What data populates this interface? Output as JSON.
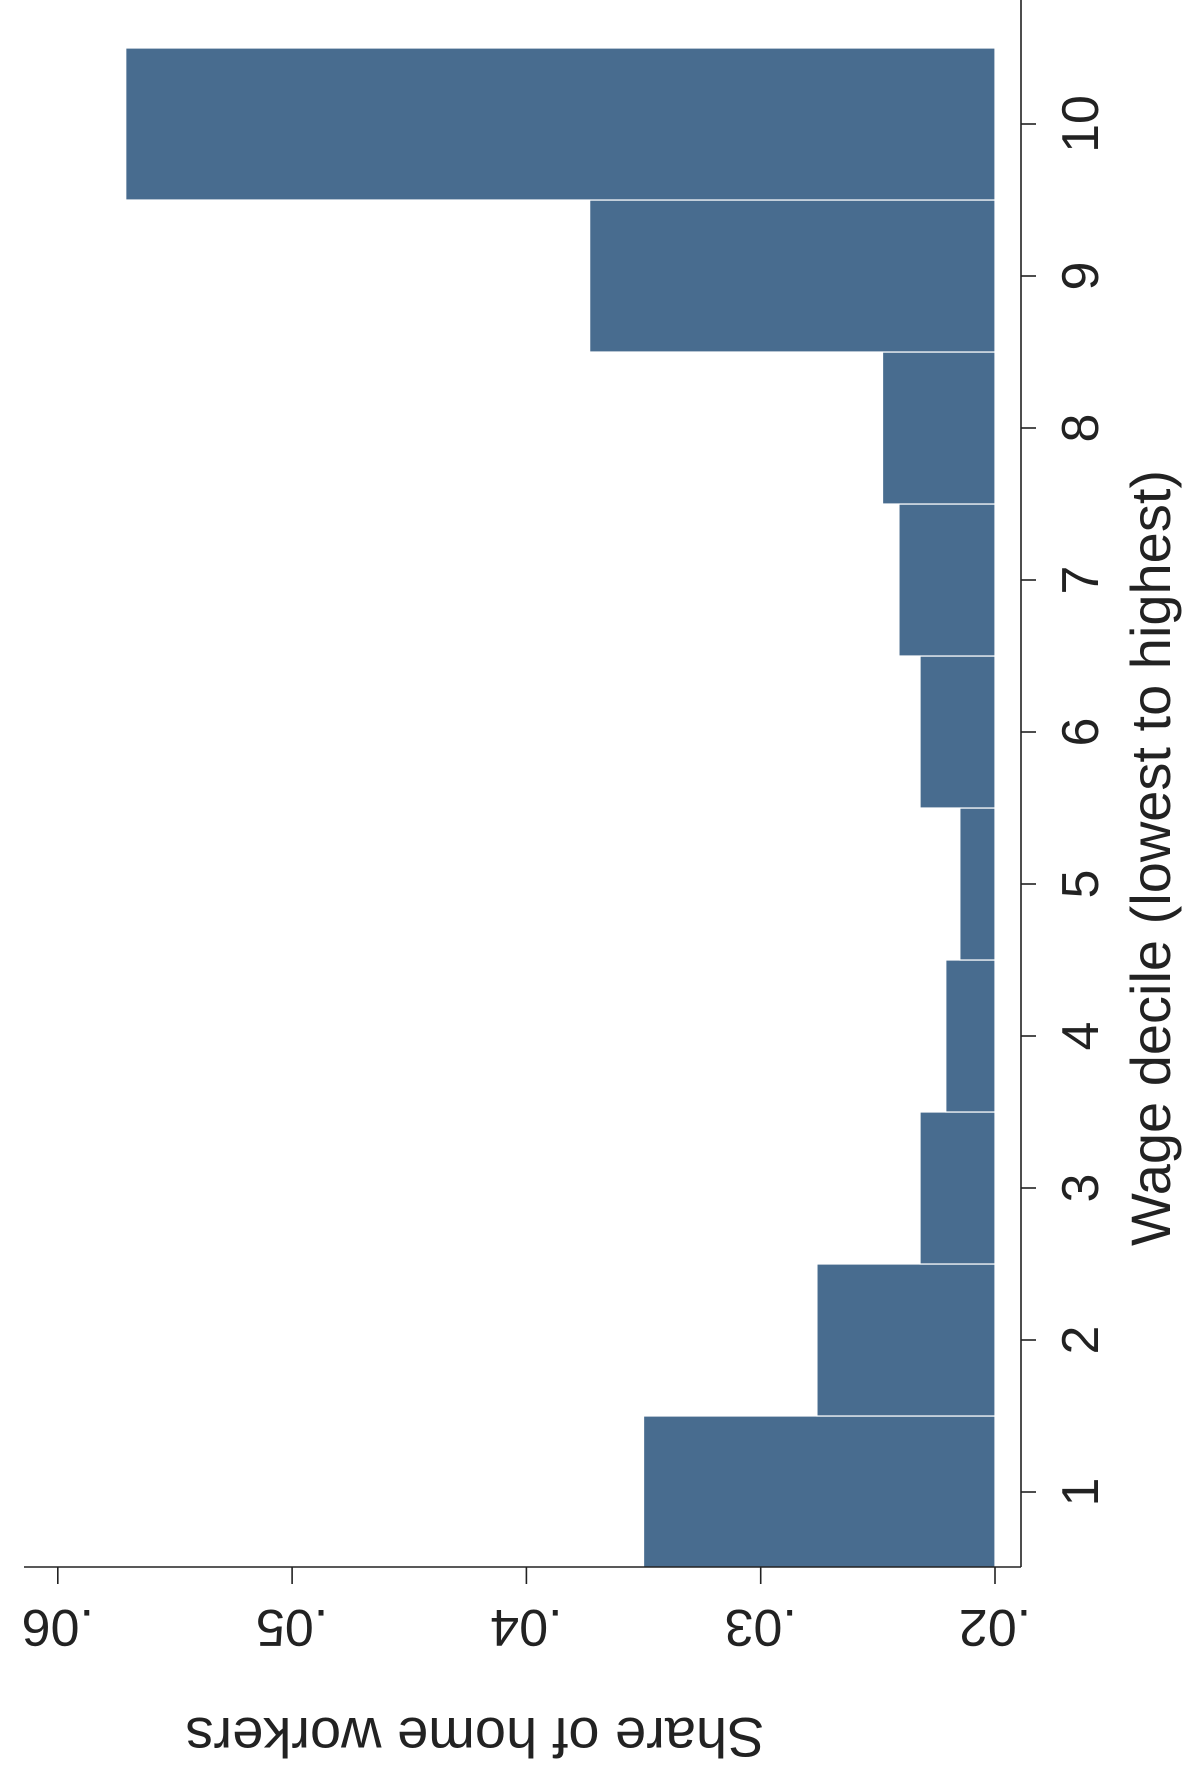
{
  "chart_data": {
    "type": "bar",
    "orientation": "horizontal-rotated",
    "title": "",
    "xlabel": "Wage decile (lowest to highest)",
    "ylabel": "Share of home workers",
    "categories": [
      "1",
      "2",
      "3",
      "4",
      "5",
      "6",
      "7",
      "8",
      "9",
      "10"
    ],
    "values": [
      0.035,
      0.0276,
      0.0232,
      0.0221,
      0.0215,
      0.0232,
      0.0241,
      0.0248,
      0.0373,
      0.0571
    ],
    "yticks": [
      ".02",
      ".03",
      ".04",
      ".05",
      ".06"
    ],
    "ylim": [
      0.02,
      0.061
    ],
    "bar_color": "#486c8f",
    "grid": false,
    "legend": "none"
  }
}
